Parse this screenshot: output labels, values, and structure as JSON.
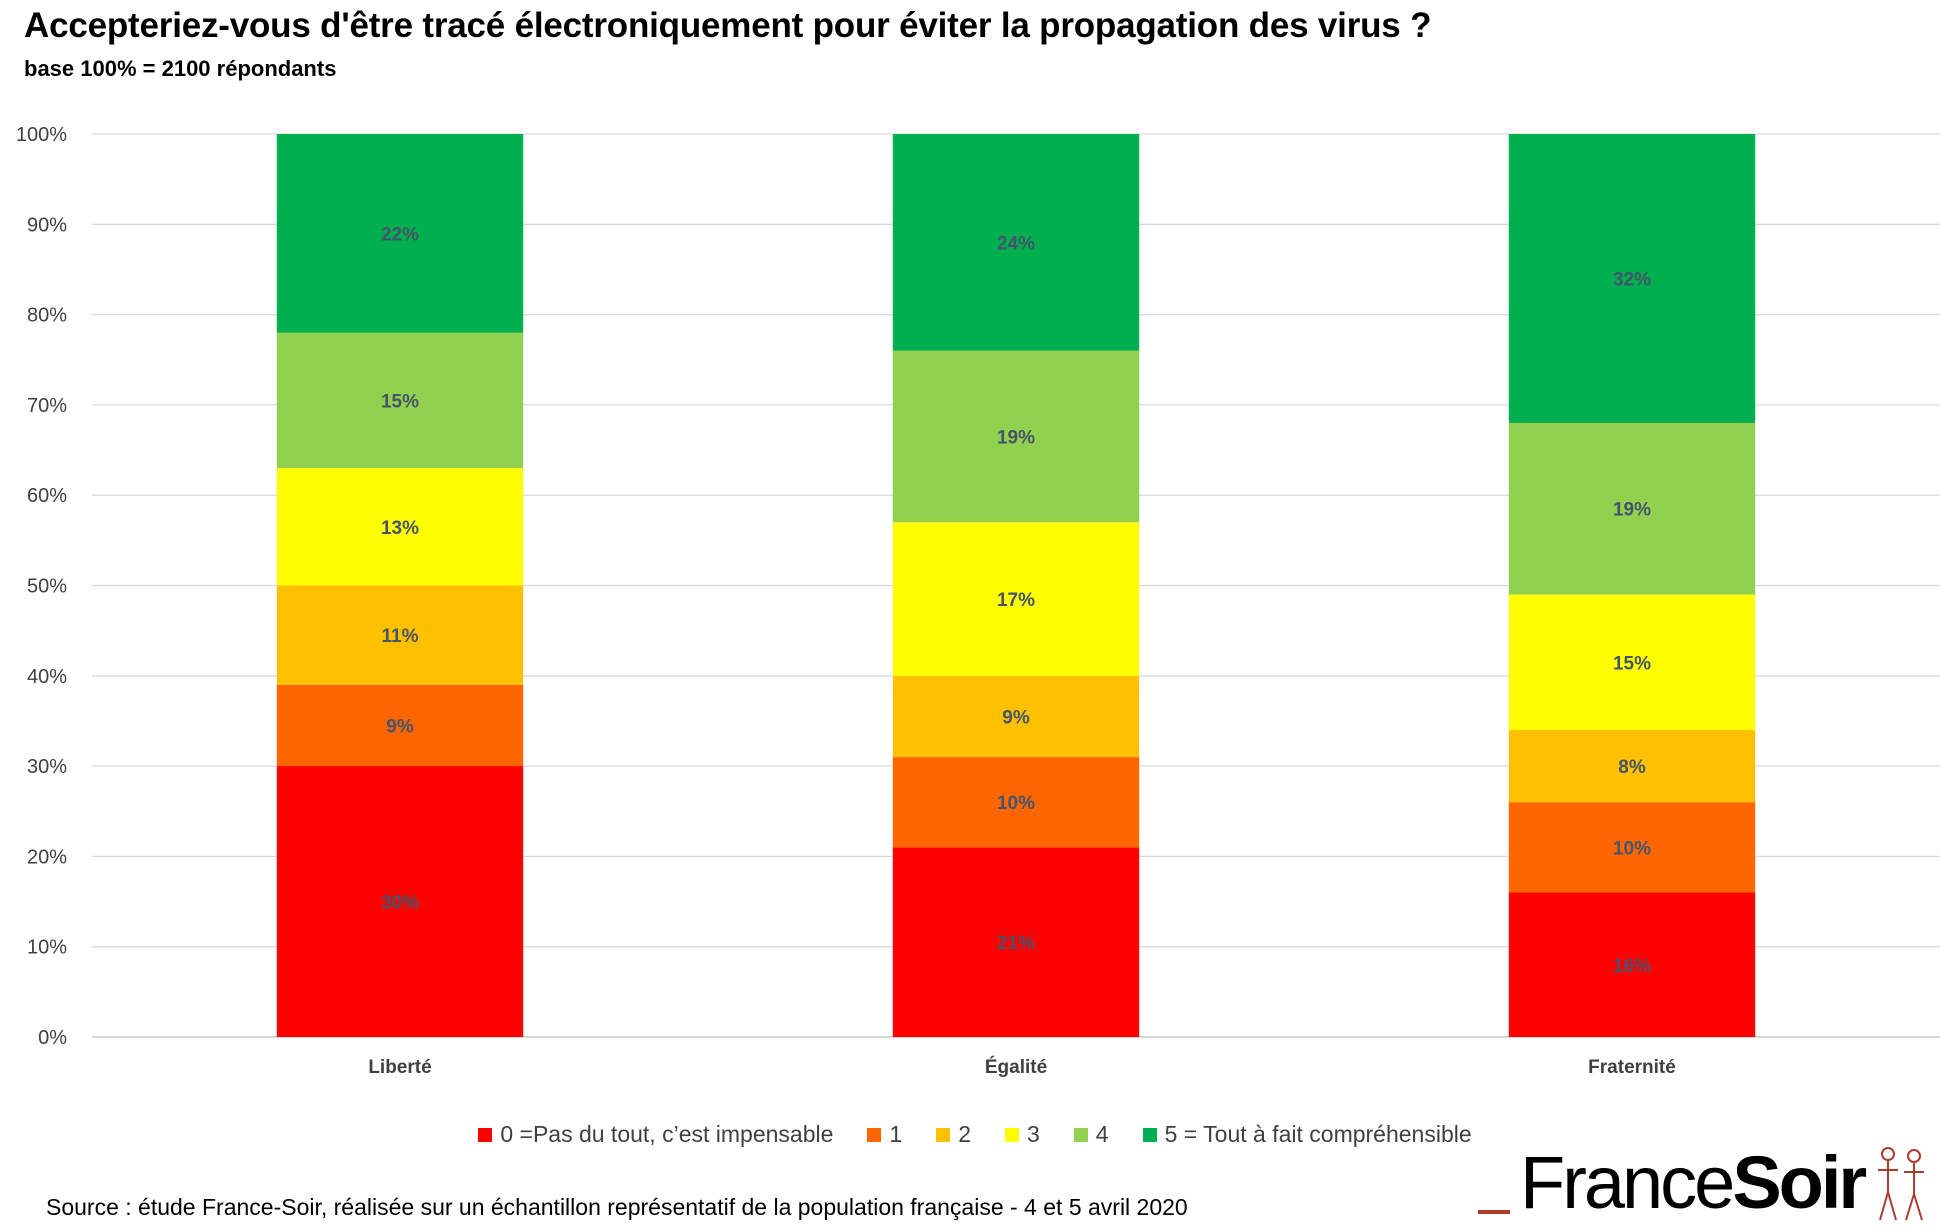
{
  "title": "Accepteriez-vous d'être tracé électroniquement pour éviter la propagation des virus ?",
  "subtitle": "base 100% = 2100 répondants",
  "source": "Source : étude France-Soir, réalisée sur un échantillon représentatif de la population française - 4 et 5 avril 2020",
  "logo": {
    "part1": "France",
    "part2": "Soir"
  },
  "chart_data": {
    "type": "bar",
    "stacked": true,
    "categories": [
      "Liberté",
      "Égalité",
      "Fraternité"
    ],
    "ylim": [
      0,
      100
    ],
    "yticks": [
      "0%",
      "10%",
      "20%",
      "30%",
      "40%",
      "50%",
      "60%",
      "70%",
      "80%",
      "90%",
      "100%"
    ],
    "grid": true,
    "legend_position": "bottom",
    "series": [
      {
        "name": "0 =Pas du tout, c’est impensable",
        "color": "#ff0000",
        "values": [
          30,
          21,
          16
        ],
        "labels": [
          "30%",
          "21%",
          "16%"
        ]
      },
      {
        "name": "1",
        "color": "#ff6600",
        "values": [
          9,
          10,
          10
        ],
        "labels": [
          "9%",
          "10%",
          "10%"
        ]
      },
      {
        "name": "2",
        "color": "#ffc000",
        "values": [
          11,
          9,
          8
        ],
        "labels": [
          "11%",
          "9%",
          "8%"
        ]
      },
      {
        "name": "3",
        "color": "#ffff00",
        "values": [
          13,
          17,
          15
        ],
        "labels": [
          "13%",
          "17%",
          "15%"
        ]
      },
      {
        "name": "4",
        "color": "#92d050",
        "values": [
          15,
          19,
          19
        ],
        "labels": [
          "15%",
          "19%",
          "19%"
        ]
      },
      {
        "name": "5 = Tout à fait compréhensible",
        "color": "#00b050",
        "values": [
          22,
          24,
          32
        ],
        "labels": [
          "22%",
          "24%",
          "32%"
        ]
      }
    ]
  }
}
